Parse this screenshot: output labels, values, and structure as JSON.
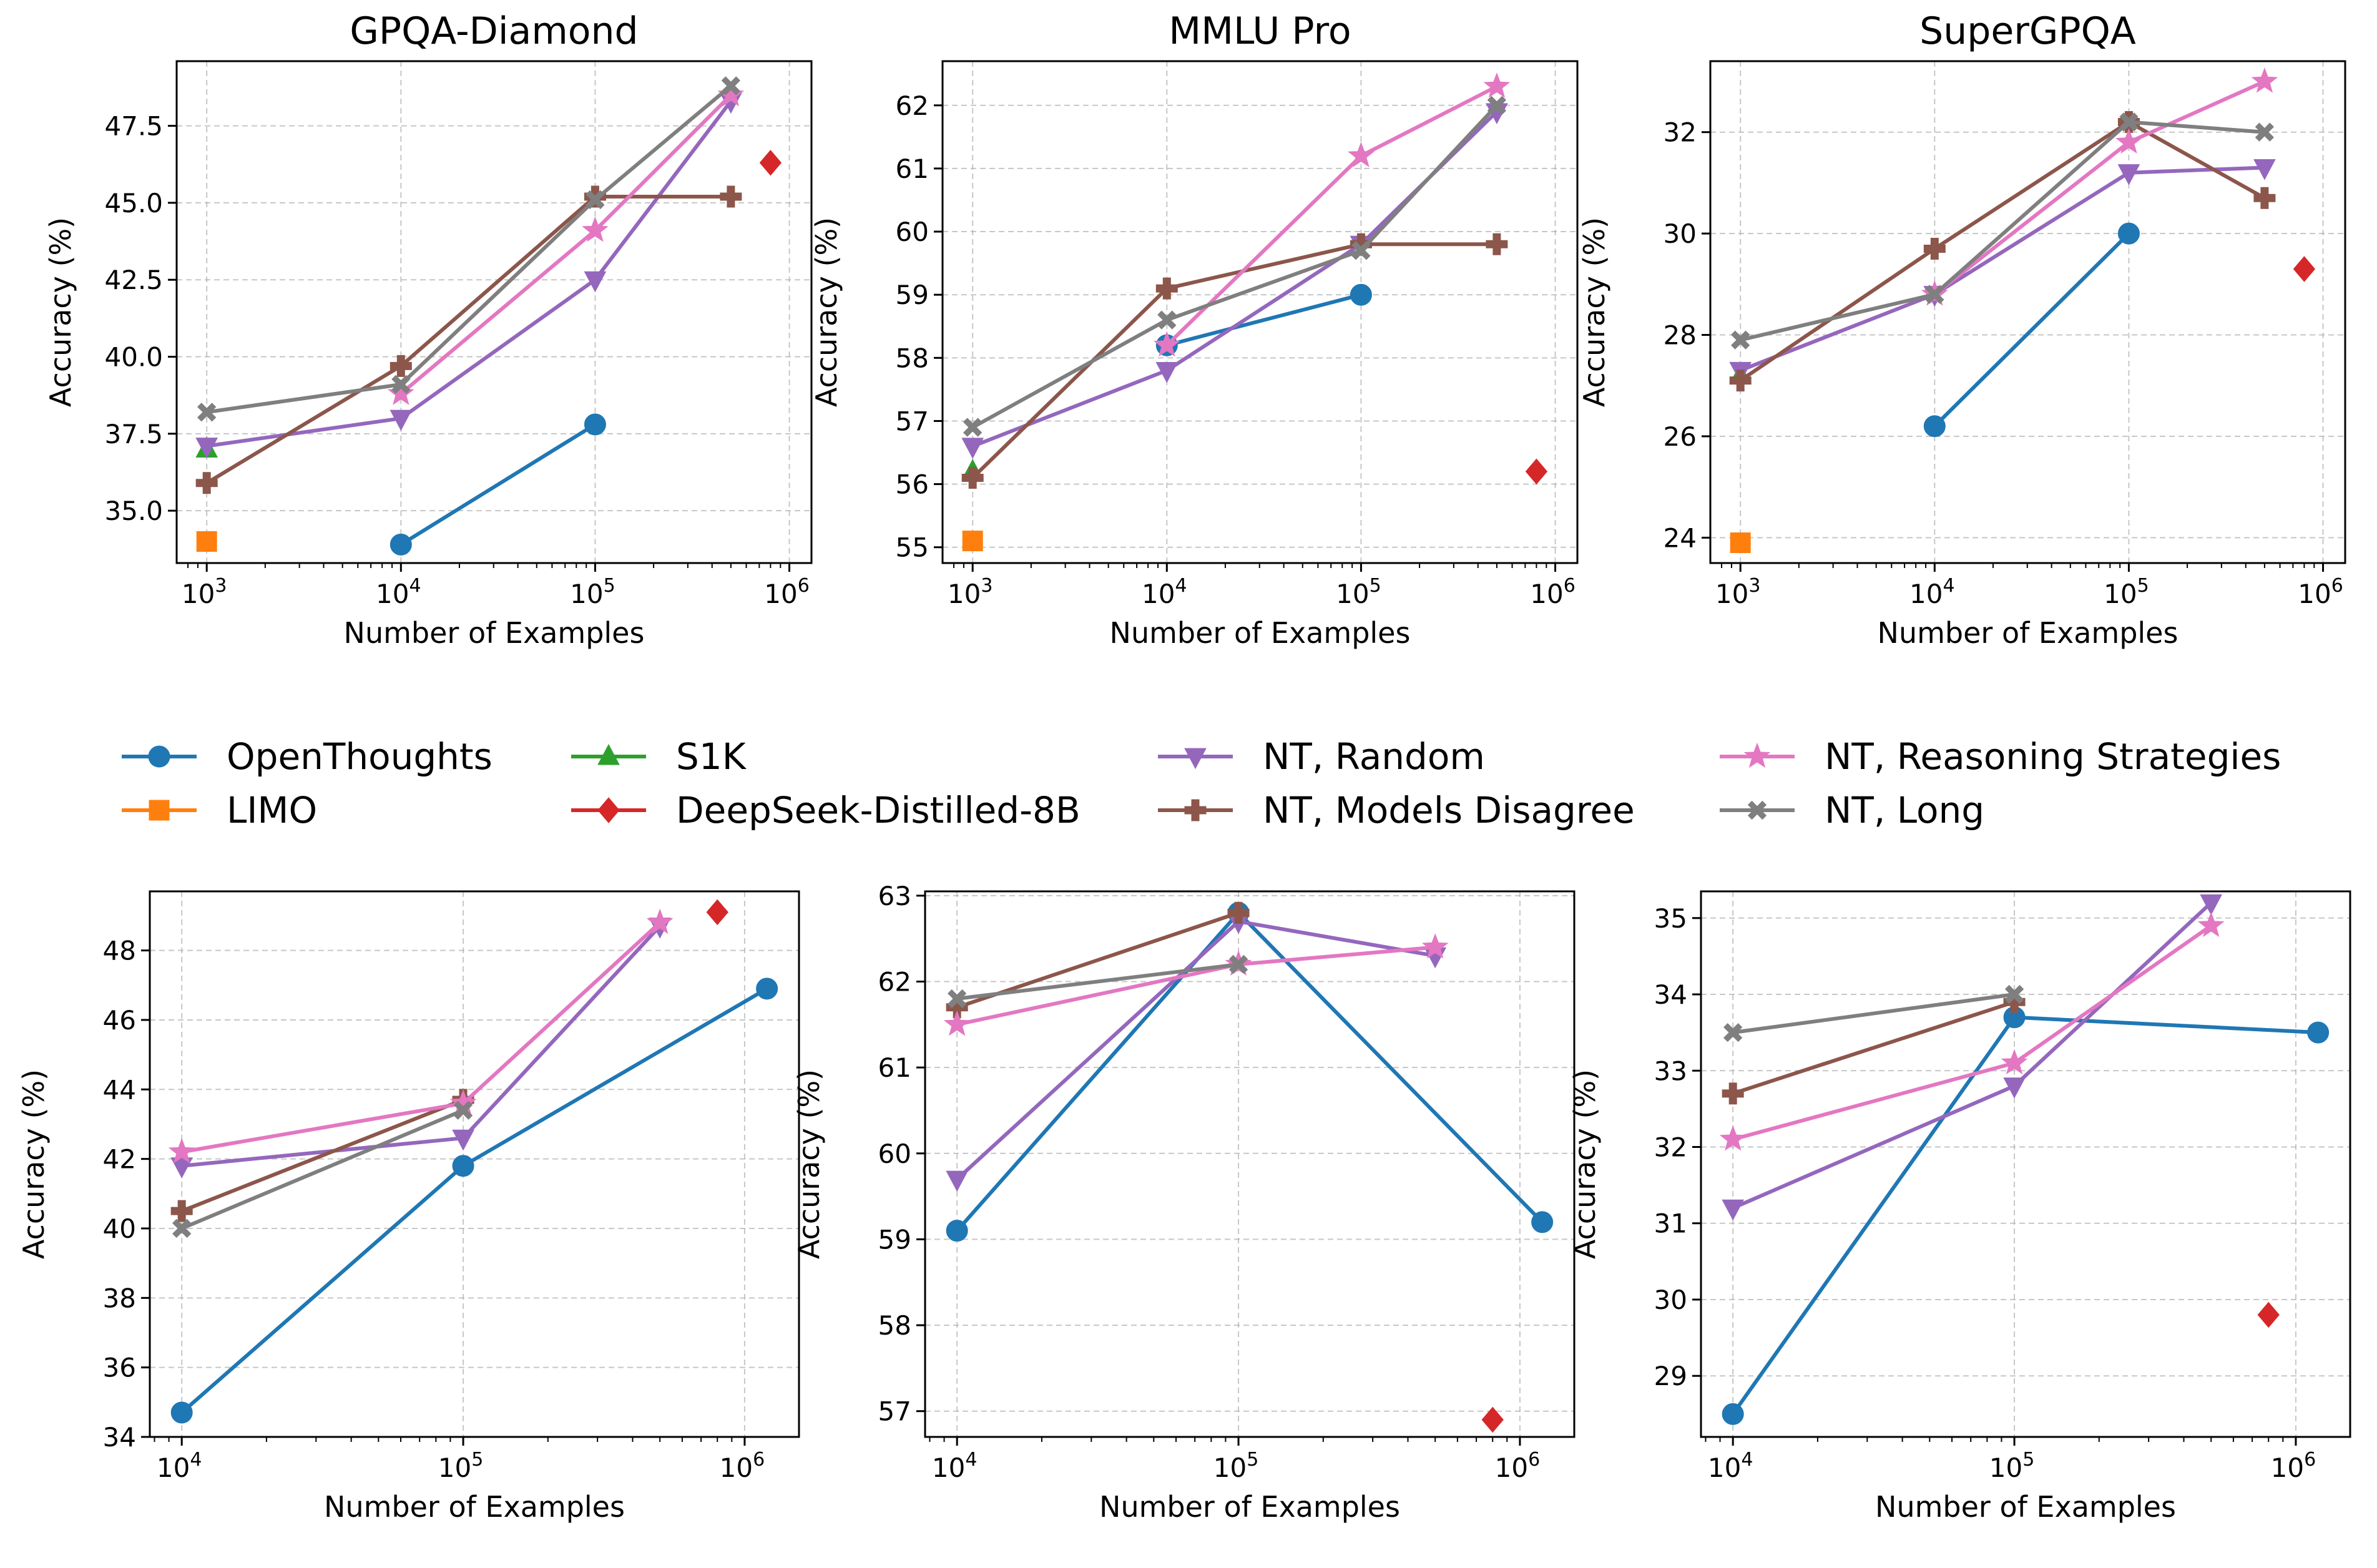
{
  "legend": {
    "entries": [
      {
        "label": "OpenThoughts",
        "color": "#1f77b4",
        "marker": "circle"
      },
      {
        "label": "LIMO",
        "color": "#ff7f0e",
        "marker": "square"
      },
      {
        "label": "S1K",
        "color": "#2ca02c",
        "marker": "triangle-up"
      },
      {
        "label": "DeepSeek-Distilled-8B",
        "color": "#d62728",
        "marker": "diamond"
      },
      {
        "label": "NT, Random",
        "color": "#9467bd",
        "marker": "triangle-down"
      },
      {
        "label": "NT, Models Disagree",
        "color": "#8c564b",
        "marker": "plus"
      },
      {
        "label": "NT, Reasoning Strategies",
        "color": "#e377c2",
        "marker": "star"
      },
      {
        "label": "NT, Long",
        "color": "#7f7f7f",
        "marker": "x"
      }
    ]
  },
  "chart_data": [
    {
      "type": "line",
      "title": "GPQA-Diamond",
      "xlabel": "Number of Examples",
      "ylabel": "Accuracy (%)",
      "xscale": "log",
      "xlim": [
        700,
        1300000
      ],
      "ylim": [
        33.3,
        49.6
      ],
      "yticks": [
        35.0,
        37.5,
        40.0,
        42.5,
        45.0,
        47.5
      ],
      "ytick_labels": [
        "35.0",
        "37.5",
        "40.0",
        "42.5",
        "45.0",
        "47.5"
      ],
      "xticks": [
        1000,
        10000,
        100000,
        1000000
      ],
      "xtick_labels": [
        {
          "base": "10",
          "exp": "3"
        },
        {
          "base": "10",
          "exp": "4"
        },
        {
          "base": "10",
          "exp": "5"
        },
        {
          "base": "10",
          "exp": "6"
        }
      ],
      "series": [
        {
          "name": "OpenThoughts",
          "x": [
            10000,
            100000
          ],
          "y": [
            33.9,
            37.8
          ]
        },
        {
          "name": "LIMO",
          "x": [
            1000
          ],
          "y": [
            34.0
          ]
        },
        {
          "name": "S1K",
          "x": [
            1000
          ],
          "y": [
            37.0
          ]
        },
        {
          "name": "DeepSeek-Distilled-8B",
          "x": [
            800000
          ],
          "y": [
            46.3
          ]
        },
        {
          "name": "NT, Random",
          "x": [
            1000,
            10000,
            100000,
            500000
          ],
          "y": [
            37.1,
            38.0,
            42.5,
            48.3
          ]
        },
        {
          "name": "NT, Models Disagree",
          "x": [
            1000,
            10000,
            100000,
            500000
          ],
          "y": [
            35.9,
            39.7,
            45.2,
            45.2
          ]
        },
        {
          "name": "NT, Reasoning Strategies",
          "x": [
            10000,
            100000,
            500000
          ],
          "y": [
            38.8,
            44.1,
            48.5
          ]
        },
        {
          "name": "NT, Long",
          "x": [
            1000,
            10000,
            100000,
            500000
          ],
          "y": [
            38.2,
            39.1,
            45.1,
            48.8
          ]
        }
      ]
    },
    {
      "type": "line",
      "title": "MMLU Pro",
      "xlabel": "Number of Examples",
      "ylabel": "Accuracy (%)",
      "xscale": "log",
      "xlim": [
        700,
        1300000
      ],
      "ylim": [
        54.75,
        62.7
      ],
      "yticks": [
        55,
        56,
        57,
        58,
        59,
        60,
        61,
        62
      ],
      "ytick_labels": [
        "55",
        "56",
        "57",
        "58",
        "59",
        "60",
        "61",
        "62"
      ],
      "xticks": [
        1000,
        10000,
        100000,
        1000000
      ],
      "xtick_labels": [
        {
          "base": "10",
          "exp": "3"
        },
        {
          "base": "10",
          "exp": "4"
        },
        {
          "base": "10",
          "exp": "5"
        },
        {
          "base": "10",
          "exp": "6"
        }
      ],
      "series": [
        {
          "name": "OpenThoughts",
          "x": [
            10000,
            100000
          ],
          "y": [
            58.2,
            59.0
          ]
        },
        {
          "name": "LIMO",
          "x": [
            1000
          ],
          "y": [
            55.1
          ]
        },
        {
          "name": "S1K",
          "x": [
            1000
          ],
          "y": [
            56.2
          ]
        },
        {
          "name": "DeepSeek-Distilled-8B",
          "x": [
            800000
          ],
          "y": [
            56.2
          ]
        },
        {
          "name": "NT, Random",
          "x": [
            1000,
            10000,
            100000,
            500000
          ],
          "y": [
            56.6,
            57.8,
            59.8,
            61.9
          ]
        },
        {
          "name": "NT, Models Disagree",
          "x": [
            1000,
            10000,
            100000,
            500000
          ],
          "y": [
            56.1,
            59.1,
            59.8,
            59.8
          ]
        },
        {
          "name": "NT, Reasoning Strategies",
          "x": [
            10000,
            100000,
            500000
          ],
          "y": [
            58.2,
            61.2,
            62.3
          ]
        },
        {
          "name": "NT, Long",
          "x": [
            1000,
            10000,
            100000,
            500000
          ],
          "y": [
            56.9,
            58.6,
            59.7,
            62.0
          ]
        }
      ]
    },
    {
      "type": "line",
      "title": "SuperGPQA",
      "xlabel": "Number of Examples",
      "ylabel": "Accuracy (%)",
      "xscale": "log",
      "xlim": [
        700,
        1300000
      ],
      "ylim": [
        23.5,
        33.4
      ],
      "yticks": [
        24,
        26,
        28,
        30,
        32
      ],
      "ytick_labels": [
        "24",
        "26",
        "28",
        "30",
        "32"
      ],
      "xticks": [
        1000,
        10000,
        100000,
        1000000
      ],
      "xtick_labels": [
        {
          "base": "10",
          "exp": "3"
        },
        {
          "base": "10",
          "exp": "4"
        },
        {
          "base": "10",
          "exp": "5"
        },
        {
          "base": "10",
          "exp": "6"
        }
      ],
      "series": [
        {
          "name": "OpenThoughts",
          "x": [
            10000,
            100000
          ],
          "y": [
            26.2,
            30.0
          ]
        },
        {
          "name": "LIMO",
          "x": [
            1000
          ],
          "y": [
            23.9
          ]
        },
        {
          "name": "S1K",
          "x": [
            1000
          ],
          "y": [
            27.2
          ]
        },
        {
          "name": "DeepSeek-Distilled-8B",
          "x": [
            800000
          ],
          "y": [
            29.3
          ]
        },
        {
          "name": "NT, Random",
          "x": [
            1000,
            10000,
            100000,
            500000
          ],
          "y": [
            27.3,
            28.8,
            31.2,
            31.3
          ]
        },
        {
          "name": "NT, Models Disagree",
          "x": [
            1000,
            10000,
            100000,
            500000
          ],
          "y": [
            27.1,
            29.7,
            32.2,
            30.7
          ]
        },
        {
          "name": "NT, Reasoning Strategies",
          "x": [
            10000,
            100000,
            500000
          ],
          "y": [
            28.8,
            31.8,
            33.0
          ]
        },
        {
          "name": "NT, Long",
          "x": [
            1000,
            10000,
            100000,
            500000
          ],
          "y": [
            27.9,
            28.8,
            32.2,
            32.0
          ]
        }
      ]
    },
    {
      "type": "line",
      "title": "",
      "xlabel": "Number of Examples",
      "ylabel": "Accuracy (%)",
      "xscale": "log",
      "xlim": [
        7700,
        1560000
      ],
      "ylim": [
        34.0,
        49.7
      ],
      "yticks": [
        34,
        36,
        38,
        40,
        42,
        44,
        46,
        48
      ],
      "ytick_labels": [
        "34",
        "36",
        "38",
        "40",
        "42",
        "44",
        "46",
        "48"
      ],
      "xticks": [
        10000,
        100000,
        1000000
      ],
      "xtick_labels": [
        {
          "base": "10",
          "exp": "4"
        },
        {
          "base": "10",
          "exp": "5"
        },
        {
          "base": "10",
          "exp": "6"
        }
      ],
      "series": [
        {
          "name": "OpenThoughts",
          "x": [
            10000,
            100000,
            1200000
          ],
          "y": [
            34.7,
            41.8,
            46.9
          ]
        },
        {
          "name": "DeepSeek-Distilled-8B",
          "x": [
            800000
          ],
          "y": [
            49.1
          ]
        },
        {
          "name": "NT, Random",
          "x": [
            10000,
            100000,
            500000
          ],
          "y": [
            41.8,
            42.6,
            48.7
          ]
        },
        {
          "name": "NT, Models Disagree",
          "x": [
            10000,
            100000
          ],
          "y": [
            40.5,
            43.7
          ]
        },
        {
          "name": "NT, Reasoning Strategies",
          "x": [
            10000,
            100000,
            500000
          ],
          "y": [
            42.2,
            43.6,
            48.8
          ]
        },
        {
          "name": "NT, Long",
          "x": [
            10000,
            100000
          ],
          "y": [
            40.0,
            43.4
          ]
        }
      ]
    },
    {
      "type": "line",
      "title": "",
      "xlabel": "Number of Examples",
      "ylabel": "Accuracy (%)",
      "xscale": "log",
      "xlim": [
        7700,
        1560000
      ],
      "ylim": [
        56.7,
        63.05
      ],
      "yticks": [
        57,
        58,
        59,
        60,
        61,
        62,
        63
      ],
      "ytick_labels": [
        "57",
        "58",
        "59",
        "60",
        "61",
        "62",
        "63"
      ],
      "xticks": [
        10000,
        100000,
        1000000
      ],
      "xtick_labels": [
        {
          "base": "10",
          "exp": "4"
        },
        {
          "base": "10",
          "exp": "5"
        },
        {
          "base": "10",
          "exp": "6"
        }
      ],
      "series": [
        {
          "name": "OpenThoughts",
          "x": [
            10000,
            100000,
            1200000
          ],
          "y": [
            59.1,
            62.8,
            59.2
          ]
        },
        {
          "name": "DeepSeek-Distilled-8B",
          "x": [
            800000
          ],
          "y": [
            56.9
          ]
        },
        {
          "name": "NT, Random",
          "x": [
            10000,
            100000,
            500000
          ],
          "y": [
            59.7,
            62.7,
            62.3
          ]
        },
        {
          "name": "NT, Models Disagree",
          "x": [
            10000,
            100000
          ],
          "y": [
            61.7,
            62.8
          ]
        },
        {
          "name": "NT, Reasoning Strategies",
          "x": [
            10000,
            100000,
            500000
          ],
          "y": [
            61.5,
            62.2,
            62.4
          ]
        },
        {
          "name": "NT, Long",
          "x": [
            10000,
            100000
          ],
          "y": [
            61.8,
            62.2
          ]
        }
      ]
    },
    {
      "type": "line",
      "title": "",
      "xlabel": "Number of Examples",
      "ylabel": "Accuracy (%)",
      "xscale": "log",
      "xlim": [
        7700,
        1560000
      ],
      "ylim": [
        28.2,
        35.35
      ],
      "yticks": [
        29,
        30,
        31,
        32,
        33,
        34,
        35
      ],
      "ytick_labels": [
        "29",
        "30",
        "31",
        "32",
        "33",
        "34",
        "35"
      ],
      "xticks": [
        10000,
        100000,
        1000000
      ],
      "xtick_labels": [
        {
          "base": "10",
          "exp": "4"
        },
        {
          "base": "10",
          "exp": "5"
        },
        {
          "base": "10",
          "exp": "6"
        }
      ],
      "series": [
        {
          "name": "OpenThoughts",
          "x": [
            10000,
            100000,
            1200000
          ],
          "y": [
            28.5,
            33.7,
            33.5
          ]
        },
        {
          "name": "DeepSeek-Distilled-8B",
          "x": [
            800000
          ],
          "y": [
            29.8
          ]
        },
        {
          "name": "NT, Random",
          "x": [
            10000,
            100000,
            500000
          ],
          "y": [
            31.2,
            32.8,
            35.2
          ]
        },
        {
          "name": "NT, Models Disagree",
          "x": [
            10000,
            100000
          ],
          "y": [
            32.7,
            33.9
          ]
        },
        {
          "name": "NT, Reasoning Strategies",
          "x": [
            10000,
            100000,
            500000
          ],
          "y": [
            32.1,
            33.1,
            34.9
          ]
        },
        {
          "name": "NT, Long",
          "x": [
            10000,
            100000
          ],
          "y": [
            33.5,
            34.0
          ]
        }
      ]
    }
  ]
}
